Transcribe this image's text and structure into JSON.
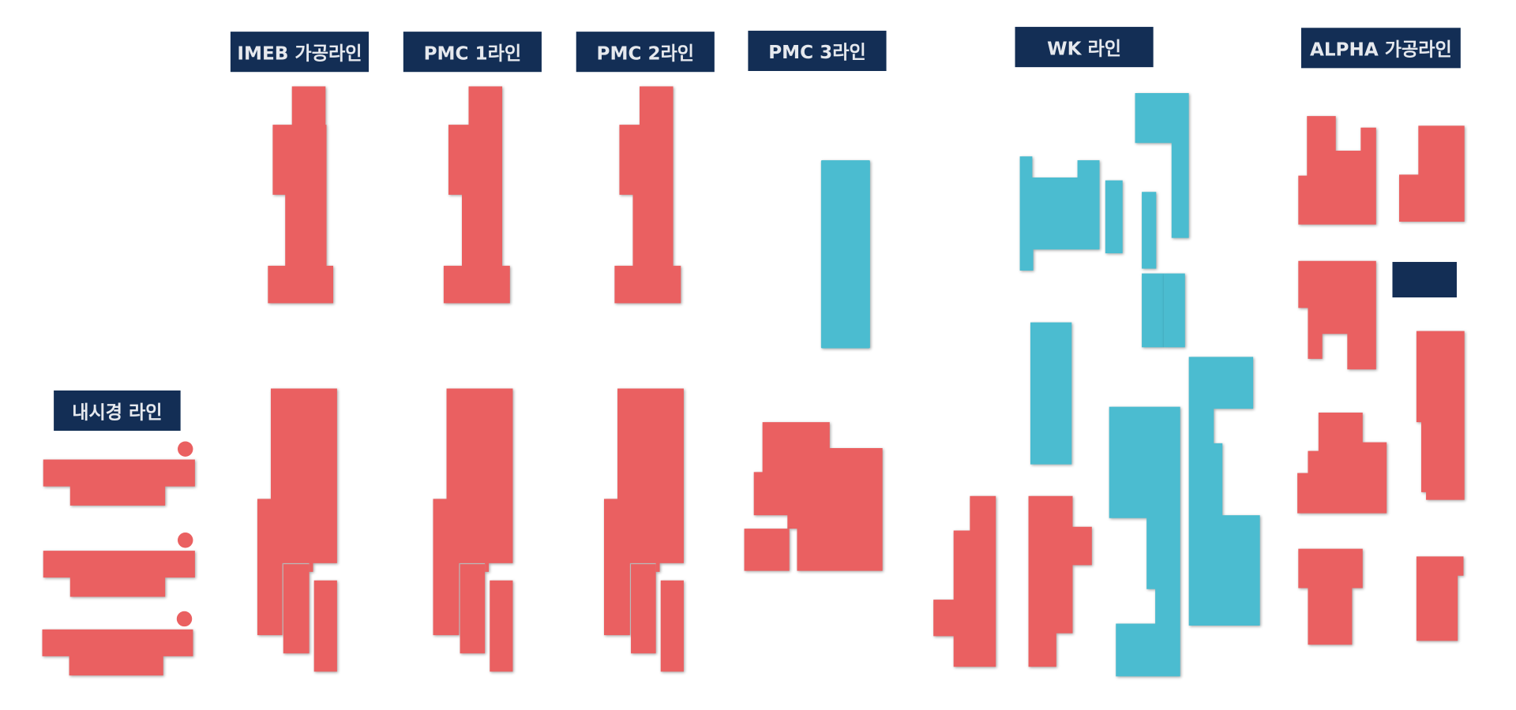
{
  "colors": {
    "label_bg": "#132e55",
    "label_text": "#e6e9ee",
    "active": "#ea6061",
    "alt": "#4bbcd0",
    "block": "#132e55",
    "background": "#ffffff"
  },
  "labels": {
    "imeb": "IMEB 가공라인",
    "pmc1": "PMC 1라인",
    "pmc2": "PMC 2라인",
    "pmc3": "PMC 3라인",
    "wk": "WK 라인",
    "alpha": "ALPHA 가공라인",
    "endoscope": "내시경 라인"
  },
  "zones": [
    {
      "id": "endoscope",
      "status": "active"
    },
    {
      "id": "imeb",
      "status": "active"
    },
    {
      "id": "pmc1",
      "status": "active"
    },
    {
      "id": "pmc2",
      "status": "active"
    },
    {
      "id": "pmc3",
      "status": "mixed"
    },
    {
      "id": "wk",
      "status": "mixed"
    },
    {
      "id": "alpha",
      "status": "active"
    }
  ]
}
